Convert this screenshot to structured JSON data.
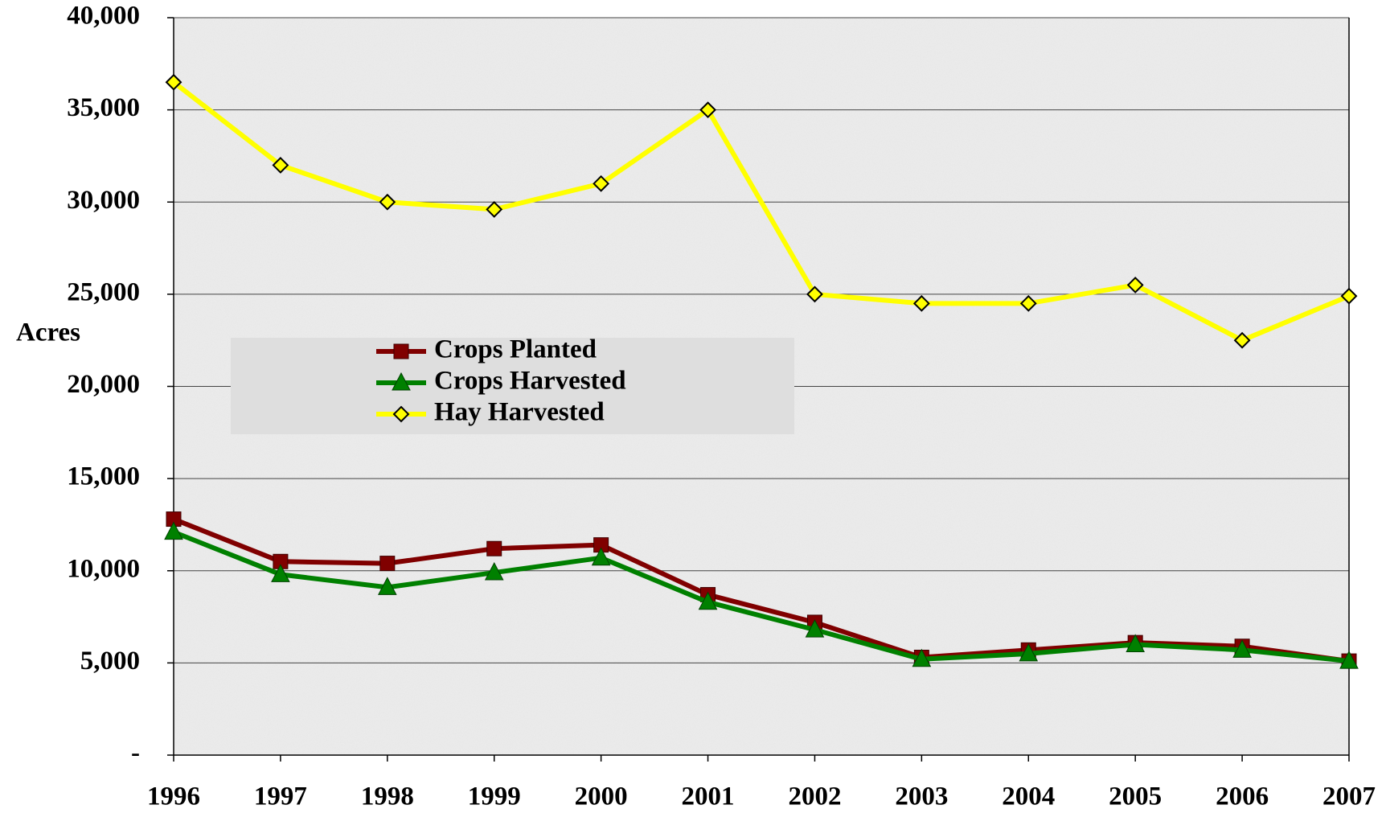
{
  "chart_data": {
    "type": "line",
    "y_label": "Acres",
    "x": [
      1996,
      1997,
      1998,
      1999,
      2000,
      2001,
      2002,
      2003,
      2004,
      2005,
      2006,
      2007
    ],
    "xlim": [
      1996,
      2007
    ],
    "xticks": [
      1996,
      1997,
      1998,
      1999,
      2000,
      2001,
      2002,
      2003,
      2004,
      2005,
      2006,
      2007
    ],
    "ylim": [
      0,
      40000
    ],
    "yticks": [
      {
        "value": 0,
        "label": "-"
      },
      {
        "value": 5000,
        "label": "5,000"
      },
      {
        "value": 10000,
        "label": "10,000"
      },
      {
        "value": 15000,
        "label": "15,000"
      },
      {
        "value": 20000,
        "label": "20,000"
      },
      {
        "value": 25000,
        "label": "25,000"
      },
      {
        "value": 30000,
        "label": "30,000"
      },
      {
        "value": 35000,
        "label": "35,000"
      },
      {
        "value": 40000,
        "label": "40,000"
      }
    ],
    "grid": true,
    "series": [
      {
        "name": "Crops Planted",
        "color": "#800000",
        "marker": "square",
        "values": [
          12800,
          10500,
          10400,
          11200,
          11400,
          8700,
          7200,
          5300,
          5700,
          6100,
          5900,
          5100
        ]
      },
      {
        "name": "Crops Harvested",
        "color": "#008000",
        "marker": "triangle",
        "values": [
          12100,
          9800,
          9100,
          9900,
          10700,
          8300,
          6800,
          5200,
          5500,
          6000,
          5700,
          5100
        ]
      },
      {
        "name": "Hay Harvested",
        "color": "#ffff00",
        "marker": "diamond",
        "values": [
          36500,
          32000,
          30000,
          29600,
          31000,
          35000,
          25000,
          24500,
          24500,
          25500,
          22500,
          24900
        ]
      }
    ]
  }
}
